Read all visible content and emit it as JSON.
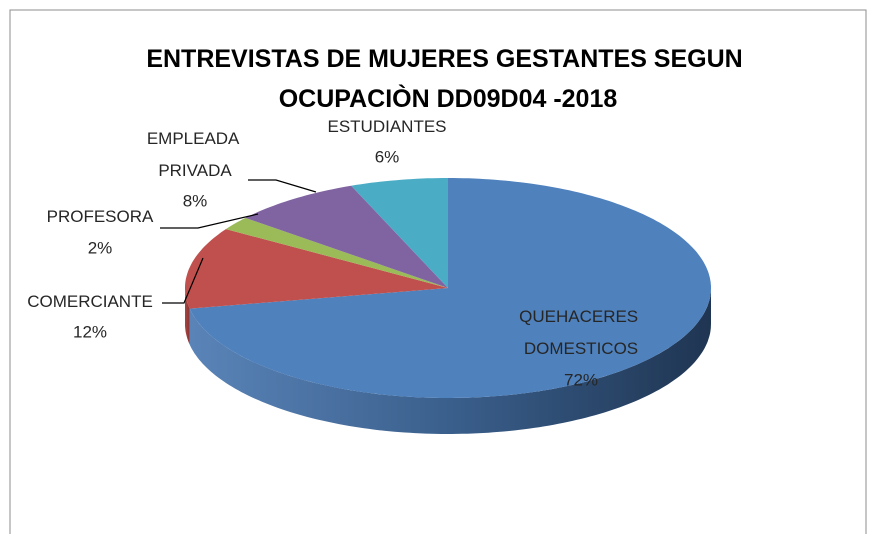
{
  "chart_data": {
    "type": "pie3d",
    "title": "ENTREVISTAS DE MUJERES GESTANTES SEGUN OCUPACIÒN DD09D04 -2018",
    "categories": [
      "QUEHACERES DOMESTICOS",
      "COMERCIANTE",
      "PROFESORA",
      "EMPLEADA PRIVADA",
      "ESTUDIANTES"
    ],
    "values": [
      72,
      12,
      2,
      8,
      6
    ],
    "value_labels": [
      "72%",
      "12%",
      "2%",
      "8%",
      "6%"
    ],
    "colors": [
      "#4f81bd",
      "#c0504d",
      "#9bbb59",
      "#8064a2",
      "#4bacc6"
    ]
  }
}
